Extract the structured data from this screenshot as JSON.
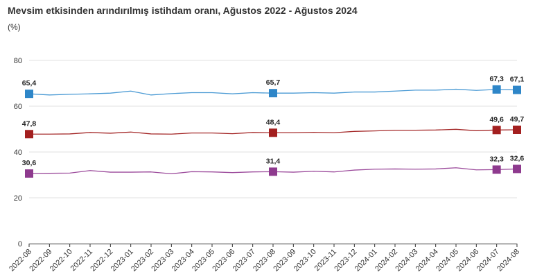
{
  "header": {
    "title": "Mevsim etkisinden arındırılmış istihdam oranı, Ağustos 2022 - Ağustos 2024",
    "unit": "(%)"
  },
  "colors": {
    "series_1": "#4a9ad4",
    "series_1_marker": "#2e86c8",
    "series_2": "#a52a2a",
    "series_2_marker": "#a31f1f",
    "series_3": "#9b4a9b",
    "series_3_marker": "#8e3a8e",
    "grid": "#e0e0e0",
    "axis": "#333333"
  },
  "chart_data": {
    "type": "line",
    "title": "Mevsim etkisinden arındırılmış istihdam oranı, Ağustos 2022 - Ağustos 2024",
    "ylabel": "(%)",
    "xlabel": "",
    "ylim": [
      0,
      80
    ],
    "yticks": [
      0,
      20,
      40,
      60,
      80
    ],
    "grid": true,
    "legend": "none",
    "categories": [
      "2022-08",
      "2022-09",
      "2022-10",
      "2022-11",
      "2022-12",
      "2023-01",
      "2023-02",
      "2023-03",
      "2023-04",
      "2023-05",
      "2023-06",
      "2023-07",
      "2023-08",
      "2023-09",
      "2023-10",
      "2023-11",
      "2023-12",
      "2024-01",
      "2024-02",
      "2024-03",
      "2024-04",
      "2024-05",
      "2024-06",
      "2024-07",
      "2024-08"
    ],
    "series": [
      {
        "color_key": "series_1",
        "values": [
          65.4,
          64.9,
          65.2,
          65.4,
          65.7,
          66.6,
          64.9,
          65.5,
          65.9,
          65.9,
          65.4,
          65.9,
          65.7,
          65.7,
          65.9,
          65.7,
          66.2,
          66.2,
          66.6,
          67.0,
          67.0,
          67.4,
          66.9,
          67.3,
          67.1
        ],
        "labels": {
          "0": "65,4",
          "12": "65,7",
          "23": "67,3",
          "24": "67,1"
        }
      },
      {
        "color_key": "series_2",
        "values": [
          47.8,
          47.8,
          47.9,
          48.5,
          48.2,
          48.7,
          47.9,
          47.8,
          48.3,
          48.3,
          48.0,
          48.5,
          48.4,
          48.4,
          48.6,
          48.4,
          49.0,
          49.2,
          49.5,
          49.5,
          49.6,
          49.9,
          49.3,
          49.6,
          49.7
        ],
        "labels": {
          "0": "47,8",
          "12": "48,4",
          "23": "49,6",
          "24": "49,7"
        }
      },
      {
        "color_key": "series_3",
        "values": [
          30.6,
          30.7,
          30.8,
          31.9,
          31.2,
          31.2,
          31.3,
          30.5,
          31.4,
          31.3,
          31.0,
          31.3,
          31.4,
          31.2,
          31.6,
          31.3,
          32.1,
          32.5,
          32.6,
          32.5,
          32.6,
          33.1,
          32.2,
          32.3,
          32.6
        ],
        "labels": {
          "0": "30,6",
          "12": "31,4",
          "23": "32,3",
          "24": "32,6"
        }
      }
    ]
  }
}
